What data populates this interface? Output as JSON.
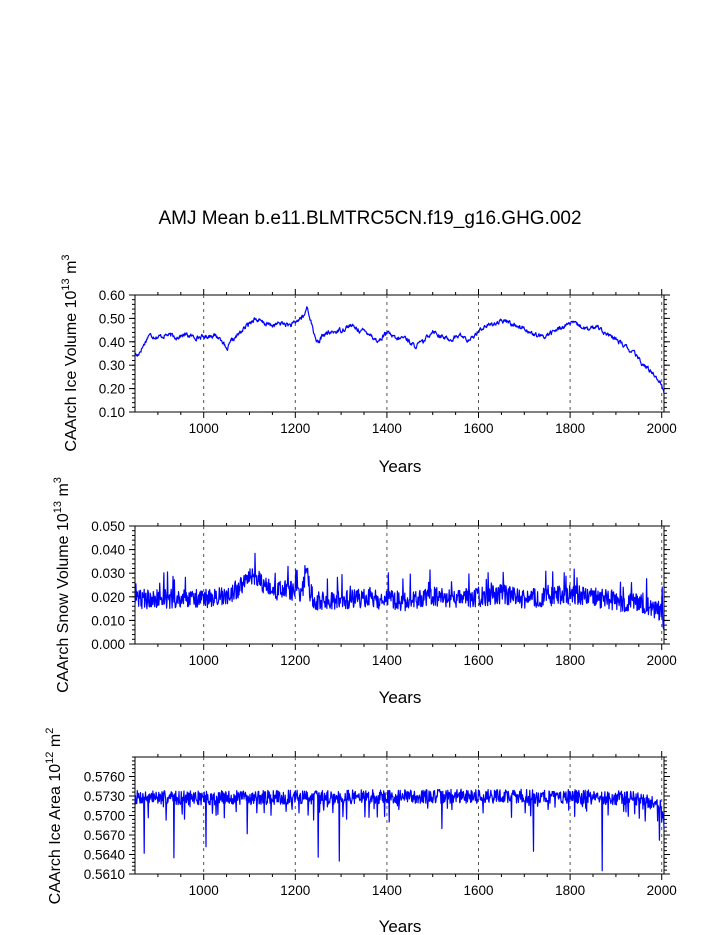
{
  "figure_title": "AMJ Mean b.e11.BLMTRC5CN.f19_g16.GHG.002",
  "colors": {
    "series": "#0000ff",
    "axes": "#000000",
    "grid": "#555555"
  },
  "chart_data": [
    {
      "type": "line",
      "xlabel": "Years",
      "ylabel_main": "CAArch Ice Volume 10",
      "ylabel_exp1": "13",
      "ylabel_unit": " m",
      "ylabel_exp2": "3",
      "xlim": [
        850,
        2005
      ],
      "ylim": [
        0.1,
        0.6
      ],
      "xticks": [
        1000,
        1200,
        1400,
        1600,
        1800,
        2000
      ],
      "xticklabels": [
        "1000",
        "1200",
        "1400",
        "1600",
        "1800",
        "2000"
      ],
      "yticks": [
        0.1,
        0.2,
        0.3,
        0.4,
        0.5,
        0.6
      ],
      "yticklabels": [
        "0.10",
        "0.20",
        "0.30",
        "0.40",
        "0.50",
        "0.60"
      ],
      "grid_x": true,
      "series": [
        {
          "name": "CAArch Ice Volume",
          "anchors_x": [
            850,
            855,
            870,
            880,
            900,
            920,
            940,
            960,
            980,
            1000,
            1020,
            1040,
            1050,
            1060,
            1080,
            1100,
            1110,
            1130,
            1150,
            1170,
            1190,
            1200,
            1210,
            1220,
            1225,
            1230,
            1240,
            1250,
            1260,
            1280,
            1300,
            1320,
            1340,
            1360,
            1380,
            1400,
            1420,
            1440,
            1460,
            1480,
            1500,
            1520,
            1540,
            1560,
            1580,
            1600,
            1620,
            1640,
            1660,
            1680,
            1700,
            1720,
            1740,
            1760,
            1780,
            1800,
            1820,
            1840,
            1860,
            1880,
            1900,
            1920,
            1940,
            1960,
            1980,
            2000,
            2005
          ],
          "anchors_y": [
            0.35,
            0.34,
            0.39,
            0.43,
            0.42,
            0.43,
            0.42,
            0.43,
            0.42,
            0.42,
            0.43,
            0.41,
            0.36,
            0.4,
            0.44,
            0.48,
            0.5,
            0.48,
            0.47,
            0.48,
            0.47,
            0.48,
            0.5,
            0.51,
            0.55,
            0.52,
            0.44,
            0.39,
            0.43,
            0.44,
            0.45,
            0.47,
            0.45,
            0.44,
            0.4,
            0.44,
            0.41,
            0.42,
            0.38,
            0.4,
            0.45,
            0.42,
            0.41,
            0.43,
            0.4,
            0.45,
            0.47,
            0.48,
            0.49,
            0.47,
            0.46,
            0.43,
            0.42,
            0.44,
            0.46,
            0.48,
            0.47,
            0.45,
            0.47,
            0.43,
            0.41,
            0.38,
            0.35,
            0.3,
            0.27,
            0.22,
            0.18
          ],
          "noise": 0.008,
          "seed": 17
        }
      ]
    },
    {
      "type": "line",
      "xlabel": "Years",
      "ylabel_main": "CAArch Snow Volume 10",
      "ylabel_exp1": "13",
      "ylabel_unit": " m",
      "ylabel_exp2": "3",
      "xlim": [
        850,
        2005
      ],
      "ylim": [
        0.0,
        0.05
      ],
      "xticks": [
        1000,
        1200,
        1400,
        1600,
        1800,
        2000
      ],
      "xticklabels": [
        "1000",
        "1200",
        "1400",
        "1600",
        "1800",
        "2000"
      ],
      "yticks": [
        0.0,
        0.01,
        0.02,
        0.03,
        0.04,
        0.05
      ],
      "yticklabels": [
        "0.000",
        "0.010",
        "0.020",
        "0.030",
        "0.040",
        "0.050"
      ],
      "grid_x": true,
      "series": [
        {
          "name": "CAArch Snow Volume",
          "anchors_x": [
            850,
            900,
            1000,
            1050,
            1080,
            1100,
            1120,
            1150,
            1180,
            1200,
            1215,
            1225,
            1232,
            1245,
            1260,
            1300,
            1400,
            1450,
            1500,
            1550,
            1600,
            1650,
            1700,
            1750,
            1800,
            1850,
            1900,
            1950,
            2000,
            2005
          ],
          "anchors_y": [
            0.019,
            0.019,
            0.019,
            0.02,
            0.024,
            0.028,
            0.027,
            0.022,
            0.023,
            0.022,
            0.021,
            0.035,
            0.022,
            0.018,
            0.018,
            0.019,
            0.019,
            0.018,
            0.02,
            0.019,
            0.02,
            0.021,
            0.019,
            0.02,
            0.021,
            0.02,
            0.018,
            0.017,
            0.014,
            0.009
          ],
          "noise": 0.0042,
          "seed": 42
        }
      ]
    },
    {
      "type": "line",
      "xlabel": "Years",
      "ylabel_main": "CAArch Ice Area 10",
      "ylabel_exp1": "12",
      "ylabel_unit": " m",
      "ylabel_exp2": "2",
      "xlim": [
        850,
        2005
      ],
      "ylim": [
        0.561,
        0.579
      ],
      "xticks": [
        1000,
        1200,
        1400,
        1600,
        1800,
        2000
      ],
      "xticklabels": [
        "1000",
        "1200",
        "1400",
        "1600",
        "1800",
        "2000"
      ],
      "yticks": [
        0.561,
        0.564,
        0.567,
        0.57,
        0.573,
        0.576
      ],
      "yticklabels": [
        "0.5610",
        "0.5640",
        "0.5670",
        "0.5700",
        "0.5730",
        "0.5760"
      ],
      "grid_x": true,
      "series": [
        {
          "name": "CAArch Ice Area",
          "anchors_x": [
            850,
            1000,
            1200,
            1400,
            1600,
            1800,
            1950,
            2000,
            2005
          ],
          "anchors_y": [
            0.5728,
            0.5727,
            0.5728,
            0.5729,
            0.573,
            0.5729,
            0.5726,
            0.5715,
            0.569
          ],
          "noise": 0.0011,
          "dips": [
            [
              870,
              0.5642
            ],
            [
              935,
              0.5635
            ],
            [
              1005,
              0.5652
            ],
            [
              1095,
              0.5672
            ],
            [
              1250,
              0.5636
            ],
            [
              1296,
              0.563
            ],
            [
              1405,
              0.569
            ],
            [
              1520,
              0.568
            ],
            [
              1720,
              0.5645
            ],
            [
              1870,
              0.5615
            ],
            [
              1995,
              0.5662
            ]
          ],
          "seed": 7
        }
      ]
    }
  ]
}
